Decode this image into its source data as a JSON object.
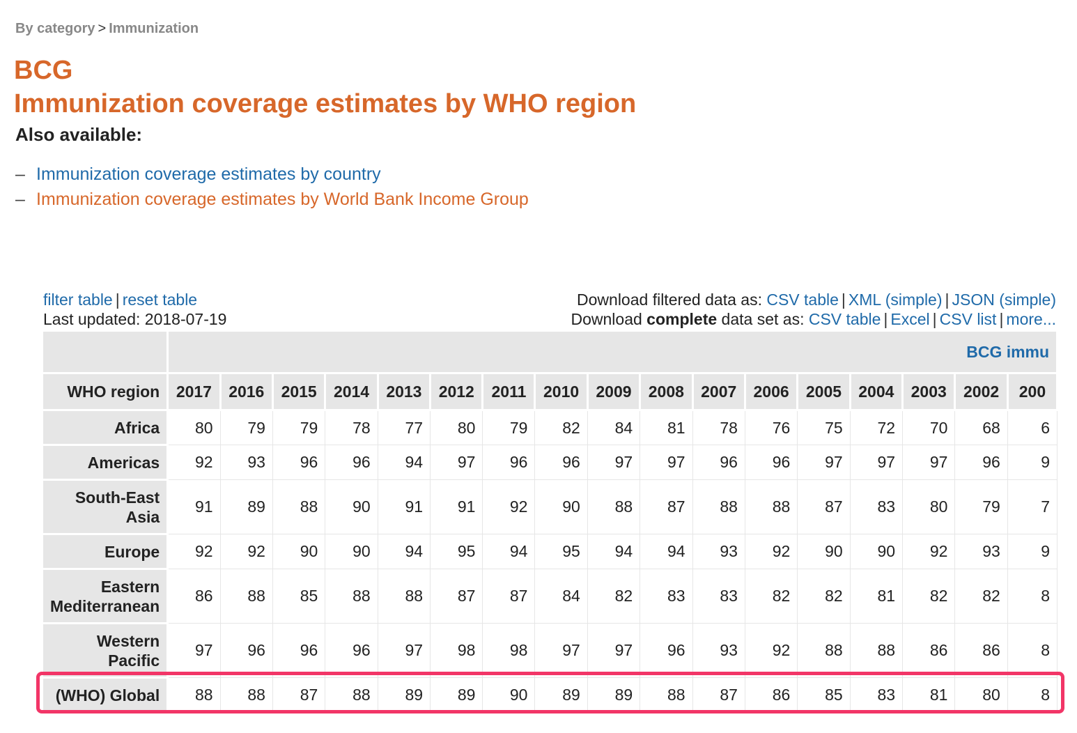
{
  "breadcrumb": {
    "parent": "By category",
    "separator": ">",
    "current": "Immunization"
  },
  "title": {
    "line1": "BCG",
    "line2": "Immunization coverage estimates by WHO region"
  },
  "also_available": {
    "label": "Also available:",
    "items": [
      {
        "dash": "–",
        "label": "Immunization coverage estimates by country",
        "color": "#1f6aa9"
      },
      {
        "dash": "–",
        "label": "Immunization coverage estimates by World Bank Income Group",
        "color": "#d7672a"
      }
    ]
  },
  "table_tools": {
    "filter": "filter table",
    "reset": "reset table",
    "last_updated": "Last updated: 2018-07-19",
    "download_filtered_label": "Download filtered data as:",
    "filtered_links": [
      "CSV table",
      "XML (simple)",
      "JSON (simple)"
    ],
    "download_complete_prefix": "Download",
    "download_complete_bold": "complete",
    "download_complete_suffix": "data set as:",
    "complete_links": [
      "CSV table",
      "Excel",
      "CSV list",
      "more..."
    ]
  },
  "table": {
    "group_title": "BCG immu",
    "row_header": "WHO region",
    "years": [
      "2017",
      "2016",
      "2015",
      "2014",
      "2013",
      "2012",
      "2011",
      "2010",
      "2009",
      "2008",
      "2007",
      "2006",
      "2005",
      "2004",
      "2003",
      "2002",
      "200"
    ],
    "rows": [
      {
        "region": "Africa",
        "values": [
          "80",
          "79",
          "79",
          "78",
          "77",
          "80",
          "79",
          "82",
          "84",
          "81",
          "78",
          "76",
          "75",
          "72",
          "70",
          "68",
          "6"
        ]
      },
      {
        "region": "Americas",
        "values": [
          "92",
          "93",
          "96",
          "96",
          "94",
          "97",
          "96",
          "96",
          "97",
          "97",
          "96",
          "96",
          "97",
          "97",
          "97",
          "96",
          "9"
        ]
      },
      {
        "region": "South-East Asia",
        "values": [
          "91",
          "89",
          "88",
          "90",
          "91",
          "91",
          "92",
          "90",
          "88",
          "87",
          "88",
          "88",
          "87",
          "83",
          "80",
          "79",
          "7"
        ]
      },
      {
        "region": "Europe",
        "values": [
          "92",
          "92",
          "90",
          "90",
          "94",
          "95",
          "94",
          "95",
          "94",
          "94",
          "93",
          "92",
          "90",
          "90",
          "92",
          "93",
          "9"
        ]
      },
      {
        "region": "Eastern Mediterranean",
        "values": [
          "86",
          "88",
          "85",
          "88",
          "88",
          "87",
          "87",
          "84",
          "82",
          "83",
          "83",
          "82",
          "82",
          "81",
          "82",
          "82",
          "8"
        ]
      },
      {
        "region": "Western Pacific",
        "values": [
          "97",
          "96",
          "96",
          "96",
          "97",
          "98",
          "98",
          "97",
          "97",
          "96",
          "93",
          "92",
          "88",
          "88",
          "86",
          "86",
          "8"
        ]
      },
      {
        "region": "(WHO) Global",
        "values": [
          "88",
          "88",
          "87",
          "88",
          "89",
          "89",
          "90",
          "89",
          "89",
          "88",
          "87",
          "86",
          "85",
          "83",
          "81",
          "80",
          "8"
        ]
      }
    ]
  },
  "colors": {
    "accent_orange": "#d7672a",
    "link_blue": "#1f6aa9",
    "highlight": "#f23567",
    "header_gray": "#e6e6e6"
  }
}
